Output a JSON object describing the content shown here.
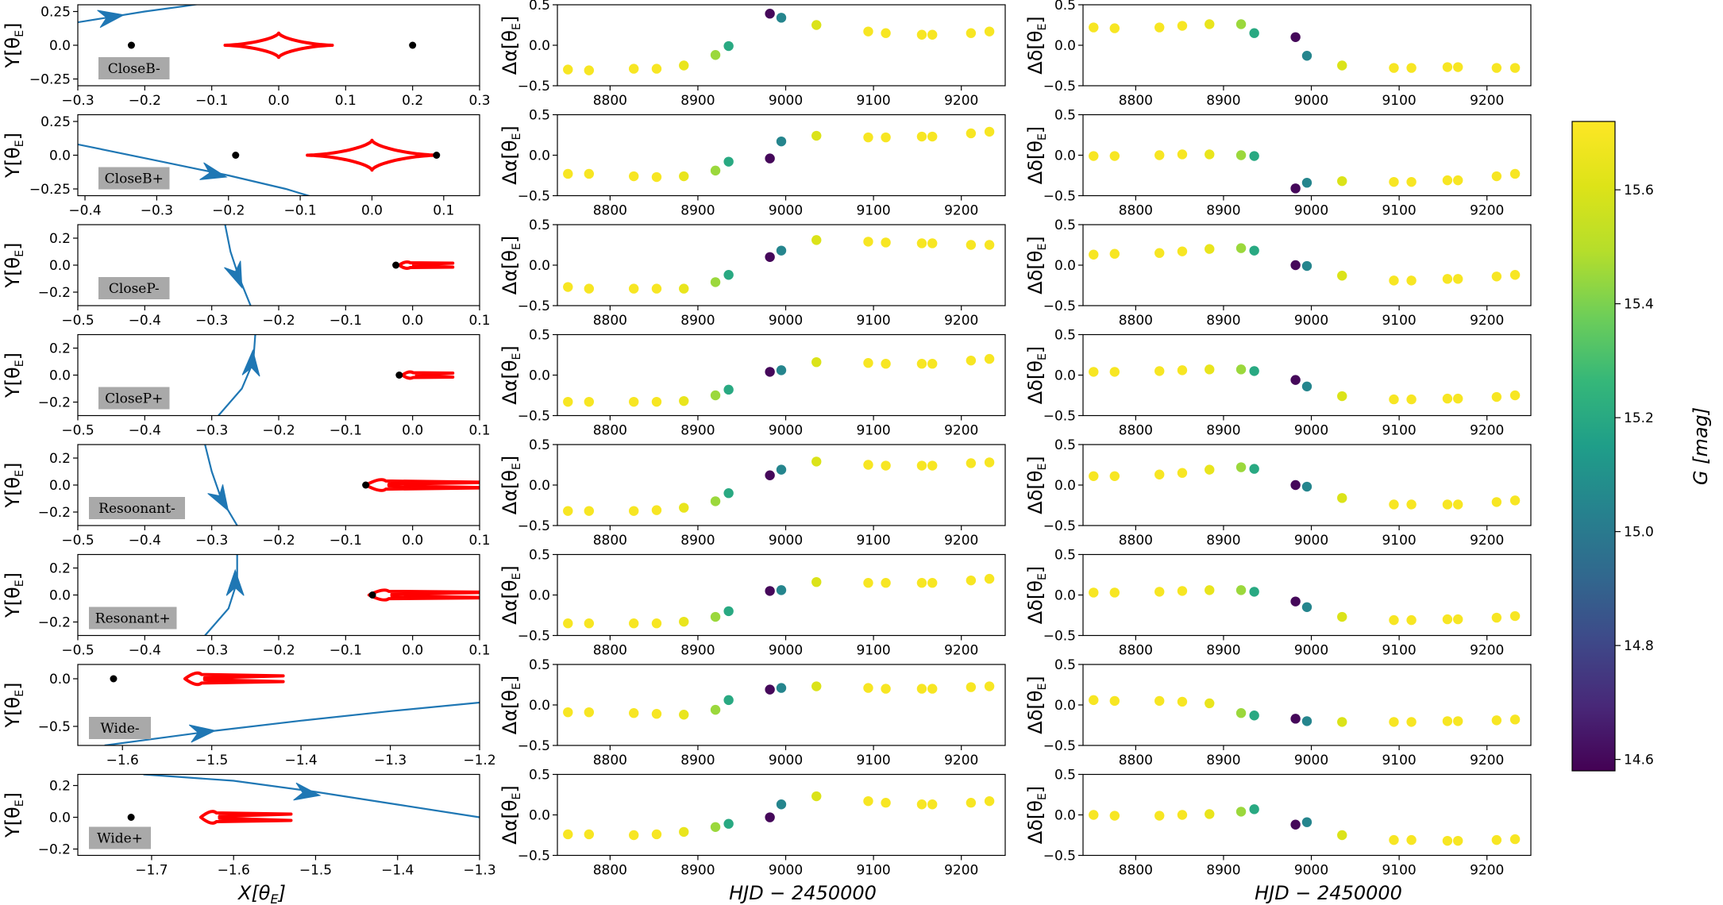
{
  "figure": {
    "x_label_left": "X[θ_E]",
    "x_label_mid": "HJD − 2450000",
    "x_label_right": "HJD − 2450000"
  },
  "chart_data": {
    "type": "scatter",
    "colorbar": {
      "label": "G [mag]",
      "range": [
        14.58,
        15.72
      ],
      "ticks": [
        14.6,
        14.8,
        15.0,
        15.2,
        15.4,
        15.6
      ],
      "colormap": "viridis"
    },
    "hjd": [
      8752,
      8776,
      8827,
      8853,
      8884,
      8920,
      8935,
      8982,
      8995,
      9035,
      9094,
      9114,
      9155,
      9167,
      9211,
      9232
    ],
    "g_mag": [
      15.7,
      15.7,
      15.7,
      15.7,
      15.65,
      15.45,
      15.2,
      14.6,
      15.05,
      15.6,
      15.7,
      15.7,
      15.7,
      15.7,
      15.7,
      15.7
    ],
    "models": [
      {
        "label": "CloseB-",
        "xlim": [
          -0.3,
          0.3
        ],
        "ylim": [
          -0.3,
          0.3
        ],
        "xticks": [
          -0.3,
          -0.2,
          -0.1,
          0.0,
          0.1,
          0.2,
          0.3
        ],
        "yticks": [
          -0.25,
          0.0,
          0.25
        ],
        "lenses": [
          [
            -0.22,
            0.0
          ],
          [
            0.2,
            0.0
          ]
        ],
        "caustic": {
          "type": "astroid",
          "cx": 0.0,
          "cy": 0.0,
          "ax": 0.08,
          "ay": 0.09
        },
        "trajectory": [
          [
            -0.3,
            0.17
          ],
          [
            -0.25,
            0.21
          ],
          [
            -0.2,
            0.25
          ],
          [
            -0.14,
            0.29
          ],
          [
            -0.1,
            0.32
          ]
        ],
        "arrow": [
          -0.25,
          0.21
        ],
        "dalpha": [
          -0.3,
          -0.31,
          -0.29,
          -0.29,
          -0.25,
          -0.12,
          -0.01,
          0.39,
          0.34,
          0.25,
          0.17,
          0.15,
          0.13,
          0.13,
          0.15,
          0.17
        ],
        "ddelta": [
          0.22,
          0.21,
          0.22,
          0.24,
          0.26,
          0.26,
          0.15,
          0.1,
          -0.13,
          -0.25,
          -0.28,
          -0.28,
          -0.27,
          -0.27,
          -0.28,
          -0.28
        ]
      },
      {
        "label": "CloseB+",
        "xlim": [
          -0.41,
          0.15
        ],
        "ylim": [
          -0.3,
          0.3
        ],
        "xticks": [
          -0.4,
          -0.3,
          -0.2,
          -0.1,
          0.0,
          0.1
        ],
        "yticks": [
          -0.25,
          0.0,
          0.25
        ],
        "lenses": [
          [
            -0.19,
            0.0
          ],
          [
            0.09,
            0.0
          ]
        ],
        "caustic": {
          "type": "astroid",
          "cx": 0.0,
          "cy": 0.0,
          "ax": 0.09,
          "ay": 0.11
        },
        "trajectory": [
          [
            -0.41,
            0.08
          ],
          [
            -0.3,
            -0.04
          ],
          [
            -0.2,
            -0.15
          ],
          [
            -0.12,
            -0.25
          ],
          [
            -0.07,
            -0.33
          ]
        ],
        "arrow": [
          -0.22,
          -0.14
        ],
        "dalpha": [
          -0.23,
          -0.23,
          -0.26,
          -0.27,
          -0.26,
          -0.19,
          -0.08,
          -0.04,
          0.17,
          0.24,
          0.22,
          0.22,
          0.23,
          0.23,
          0.27,
          0.29
        ],
        "ddelta": [
          -0.01,
          -0.01,
          0.0,
          0.01,
          0.01,
          0.0,
          -0.01,
          -0.41,
          -0.34,
          -0.32,
          -0.33,
          -0.33,
          -0.31,
          -0.31,
          -0.26,
          -0.23
        ]
      },
      {
        "label": "CloseP-",
        "xlim": [
          -0.5,
          0.1
        ],
        "ylim": [
          -0.3,
          0.3
        ],
        "xticks": [
          -0.5,
          -0.4,
          -0.3,
          -0.2,
          -0.1,
          0.0,
          0.1
        ],
        "yticks": [
          -0.2,
          0.0,
          0.2
        ],
        "lenses": [
          [
            -0.025,
            0.0
          ]
        ],
        "caustic": {
          "type": "wedge",
          "x0": -0.02,
          "x1": 0.06,
          "h": 0.035,
          "tip": 0.015
        },
        "trajectory": [
          [
            -0.28,
            0.3
          ],
          [
            -0.272,
            0.1
          ],
          [
            -0.26,
            -0.08
          ],
          [
            -0.242,
            -0.3
          ]
        ],
        "arrow": [
          -0.262,
          -0.08
        ],
        "dalpha": [
          -0.27,
          -0.29,
          -0.29,
          -0.29,
          -0.29,
          -0.21,
          -0.12,
          0.1,
          0.18,
          0.31,
          0.29,
          0.28,
          0.27,
          0.27,
          0.25,
          0.25
        ],
        "ddelta": [
          0.13,
          0.14,
          0.15,
          0.17,
          0.2,
          0.21,
          0.18,
          0.0,
          -0.01,
          -0.13,
          -0.19,
          -0.19,
          -0.17,
          -0.17,
          -0.14,
          -0.12
        ]
      },
      {
        "label": "CloseP+",
        "xlim": [
          -0.5,
          0.1
        ],
        "ylim": [
          -0.3,
          0.3
        ],
        "xticks": [
          -0.5,
          -0.4,
          -0.3,
          -0.2,
          -0.1,
          0.0,
          0.1
        ],
        "yticks": [
          -0.2,
          0.0,
          0.2
        ],
        "lenses": [
          [
            -0.02,
            0.0
          ]
        ],
        "caustic": {
          "type": "wedge",
          "x0": -0.015,
          "x1": 0.06,
          "h": 0.035,
          "tip": 0.015
        },
        "trajectory": [
          [
            -0.29,
            -0.3
          ],
          [
            -0.255,
            -0.1
          ],
          [
            -0.238,
            0.1
          ],
          [
            -0.235,
            0.3
          ]
        ],
        "arrow": [
          -0.24,
          0.09
        ],
        "dalpha": [
          -0.33,
          -0.33,
          -0.33,
          -0.33,
          -0.32,
          -0.25,
          -0.18,
          0.04,
          0.06,
          0.16,
          0.15,
          0.14,
          0.14,
          0.14,
          0.18,
          0.2
        ],
        "ddelta": [
          0.04,
          0.04,
          0.05,
          0.06,
          0.07,
          0.07,
          0.05,
          -0.06,
          -0.14,
          -0.26,
          -0.3,
          -0.3,
          -0.29,
          -0.29,
          -0.27,
          -0.25
        ]
      },
      {
        "label": "Resoonant-",
        "xlim": [
          -0.5,
          0.1
        ],
        "ylim": [
          -0.3,
          0.3
        ],
        "xticks": [
          -0.5,
          -0.4,
          -0.3,
          -0.2,
          -0.1,
          0.0,
          0.1
        ],
        "yticks": [
          -0.2,
          0.0,
          0.2
        ],
        "lenses": [
          [
            -0.07,
            0.0
          ]
        ],
        "caustic": {
          "type": "wedge",
          "x0": -0.07,
          "x1": 0.12,
          "h": 0.06,
          "tip": 0.02
        },
        "trajectory": [
          [
            -0.31,
            0.3
          ],
          [
            -0.3,
            0.1
          ],
          [
            -0.286,
            -0.1
          ],
          [
            -0.262,
            -0.3
          ]
        ],
        "arrow": [
          -0.285,
          -0.11
        ],
        "dalpha": [
          -0.32,
          -0.32,
          -0.32,
          -0.31,
          -0.28,
          -0.2,
          -0.1,
          0.12,
          0.19,
          0.29,
          0.25,
          0.24,
          0.24,
          0.24,
          0.27,
          0.28
        ],
        "ddelta": [
          0.11,
          0.11,
          0.13,
          0.15,
          0.19,
          0.22,
          0.2,
          0.0,
          -0.02,
          -0.16,
          -0.24,
          -0.24,
          -0.24,
          -0.24,
          -0.21,
          -0.19
        ]
      },
      {
        "label": "Resonant+",
        "xlim": [
          -0.5,
          0.1
        ],
        "ylim": [
          -0.3,
          0.3
        ],
        "xticks": [
          -0.5,
          -0.4,
          -0.3,
          -0.2,
          -0.1,
          0.0,
          0.1
        ],
        "yticks": [
          -0.2,
          0.0,
          0.2
        ],
        "lenses": [
          [
            -0.06,
            0.0
          ]
        ],
        "caustic": {
          "type": "wedge",
          "x0": -0.065,
          "x1": 0.12,
          "h": 0.055,
          "tip": 0.02
        },
        "trajectory": [
          [
            -0.31,
            -0.3
          ],
          [
            -0.275,
            -0.1
          ],
          [
            -0.262,
            0.1
          ],
          [
            -0.262,
            0.3
          ]
        ],
        "arrow": [
          -0.265,
          0.09
        ],
        "dalpha": [
          -0.35,
          -0.35,
          -0.35,
          -0.35,
          -0.33,
          -0.27,
          -0.2,
          0.05,
          0.06,
          0.16,
          0.15,
          0.15,
          0.15,
          0.15,
          0.18,
          0.2
        ],
        "ddelta": [
          0.03,
          0.03,
          0.04,
          0.05,
          0.06,
          0.06,
          0.04,
          -0.08,
          -0.15,
          -0.27,
          -0.31,
          -0.31,
          -0.3,
          -0.3,
          -0.28,
          -0.26
        ]
      },
      {
        "label": "Wide-",
        "xlim": [
          -1.65,
          -1.2
        ],
        "ylim": [
          -0.7,
          0.15
        ],
        "xticks": [
          -1.6,
          -1.5,
          -1.4,
          -1.3,
          -1.2
        ],
        "yticks": [
          -0.5,
          0.0
        ],
        "lenses": [
          [
            -1.61,
            0.0
          ]
        ],
        "caustic": {
          "type": "wedge",
          "x0": -1.53,
          "x1": -1.42,
          "h": 0.09,
          "tip": 0.03
        },
        "trajectory": [
          [
            -1.62,
            -0.7
          ],
          [
            -1.5,
            -0.55
          ],
          [
            -1.4,
            -0.44
          ],
          [
            -1.3,
            -0.34
          ],
          [
            -1.2,
            -0.25
          ]
        ],
        "arrow": [
          -1.51,
          -0.56
        ],
        "dalpha": [
          -0.09,
          -0.09,
          -0.1,
          -0.11,
          -0.12,
          -0.06,
          0.06,
          0.19,
          0.21,
          0.23,
          0.21,
          0.2,
          0.2,
          0.2,
          0.22,
          0.23
        ],
        "ddelta": [
          0.06,
          0.05,
          0.05,
          0.04,
          0.02,
          -0.1,
          -0.13,
          -0.17,
          -0.2,
          -0.21,
          -0.21,
          -0.21,
          -0.2,
          -0.2,
          -0.19,
          -0.18
        ]
      },
      {
        "label": "Wide+",
        "xlim": [
          -1.79,
          -1.3
        ],
        "ylim": [
          -0.24,
          0.27
        ],
        "xticks": [
          -1.7,
          -1.6,
          -1.5,
          -1.4,
          -1.3
        ],
        "yticks": [
          -0.2,
          0.0,
          0.2
        ],
        "lenses": [
          [
            -1.725,
            0.0
          ]
        ],
        "caustic": {
          "type": "wedge",
          "x0": -1.64,
          "x1": -1.53,
          "h": 0.055,
          "tip": 0.02
        },
        "trajectory": [
          [
            -1.71,
            0.27
          ],
          [
            -1.6,
            0.23
          ],
          [
            -1.5,
            0.16
          ],
          [
            -1.4,
            0.08
          ],
          [
            -1.3,
            0.0
          ]
        ],
        "arrow": [
          -1.51,
          0.15
        ],
        "dalpha": [
          -0.24,
          -0.24,
          -0.25,
          -0.24,
          -0.21,
          -0.15,
          -0.11,
          -0.03,
          0.13,
          0.23,
          0.17,
          0.15,
          0.13,
          0.13,
          0.15,
          0.17
        ],
        "ddelta": [
          0.0,
          -0.01,
          -0.01,
          0.0,
          0.01,
          0.04,
          0.07,
          -0.12,
          -0.09,
          -0.25,
          -0.31,
          -0.31,
          -0.32,
          -0.32,
          -0.31,
          -0.3
        ]
      }
    ],
    "middle": {
      "ylabel": "Δα[θ_E]",
      "xlim": [
        8740,
        9250
      ],
      "ylim": [
        -0.5,
        0.5
      ],
      "xticks": [
        8800,
        8900,
        9000,
        9100,
        9200
      ],
      "yticks": [
        -0.5,
        0.0,
        0.5
      ]
    },
    "right": {
      "ylabel": "Δδ[θ_E]",
      "xlim": [
        8740,
        9250
      ],
      "ylim": [
        -0.5,
        0.5
      ],
      "xticks": [
        8800,
        8900,
        9000,
        9100,
        9200
      ],
      "yticks": [
        -0.5,
        0.0,
        0.5
      ]
    },
    "left_ylabel": "Y[θ_E]"
  }
}
